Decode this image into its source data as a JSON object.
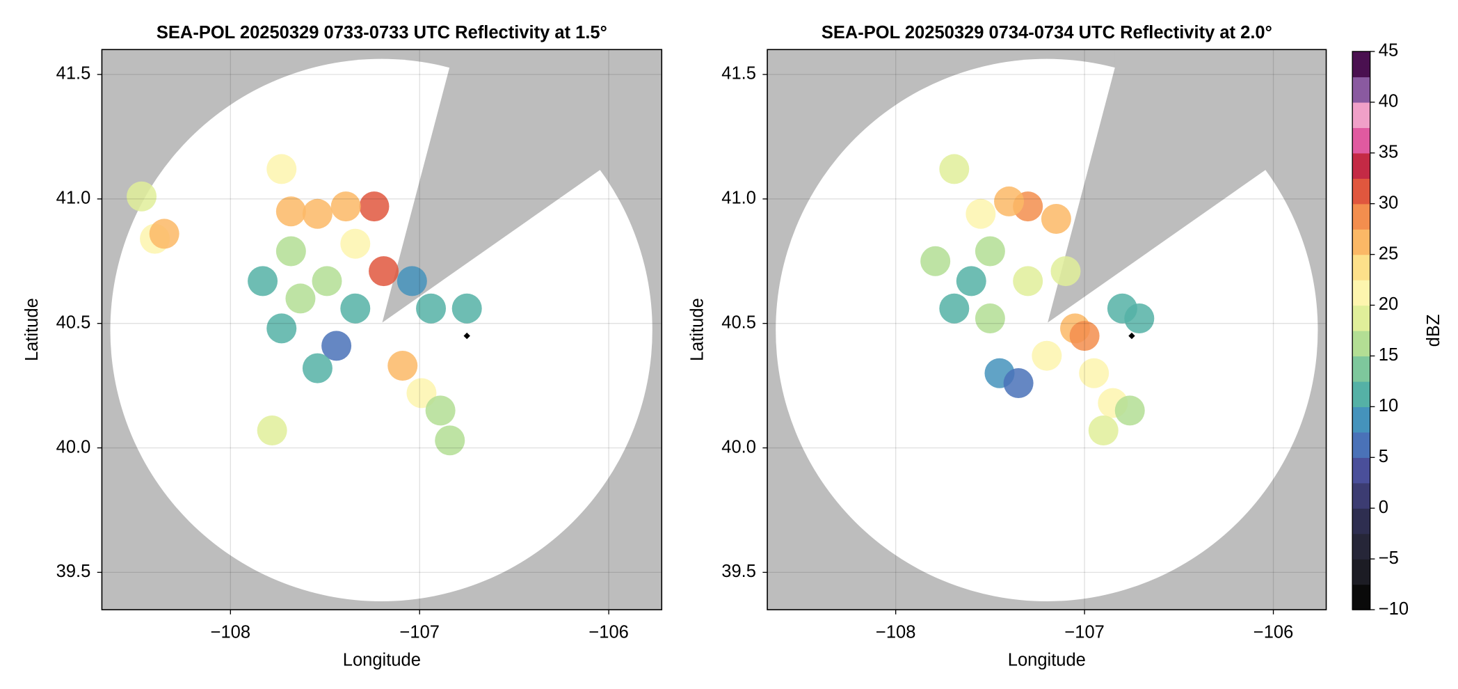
{
  "chart_data": [
    {
      "type": "radar",
      "title": "SEA-POL 20250329 0733-0733 UTC Reflectivity at 1.5°",
      "xlabel": "Longitude",
      "ylabel": "Latitude",
      "xlim": [
        -108.68,
        -105.72
      ],
      "ylim": [
        39.35,
        41.6
      ],
      "xticks": [
        {
          "value": -108,
          "label": "−108"
        },
        {
          "value": -107,
          "label": "−107"
        },
        {
          "value": -106,
          "label": "−106"
        }
      ],
      "yticks": [
        39.5,
        {
          "value": 40,
          "label": "40.0"
        },
        40.5,
        {
          "value": 41,
          "label": "41.0"
        },
        41.5
      ],
      "grid": true,
      "x": [
        -107.73,
        -107.68,
        -107.54,
        -107.24,
        -107.39,
        -107.68,
        -107.83,
        -107.63,
        -107.73,
        -107.49,
        -107.34,
        -107.19,
        -107.44,
        -107.54,
        -107.09,
        -106.99,
        -106.89,
        -106.84,
        -106.94,
        -106.75,
        -107.78,
        -108.4,
        -108.35,
        -108.47,
        -107.04,
        -107.34
      ],
      "y": [
        41.12,
        40.95,
        40.94,
        40.97,
        40.97,
        40.79,
        40.67,
        40.6,
        40.48,
        40.67,
        40.82,
        40.71,
        40.41,
        40.32,
        40.33,
        40.22,
        40.15,
        40.03,
        40.56,
        40.56,
        40.07,
        40.84,
        40.86,
        41.01,
        40.67,
        40.56
      ],
      "values": [
        20,
        25,
        25,
        30,
        25,
        15,
        10,
        15,
        10,
        15,
        20,
        30,
        5,
        10,
        25,
        20,
        15,
        15,
        10,
        10,
        18,
        20,
        25,
        18,
        8,
        12
      ],
      "markers": {
        "x": [
          -106.75
        ],
        "y": [
          40.45
        ]
      }
    },
    {
      "type": "radar",
      "title": "SEA-POL 20250329 0734-0734 UTC Reflectivity at 2.0°",
      "xlabel": "Longitude",
      "ylabel": "Latitude",
      "xlim": [
        -108.68,
        -105.72
      ],
      "ylim": [
        39.35,
        41.6
      ],
      "xticks": [
        {
          "value": -108,
          "label": "−108"
        },
        {
          "value": -107,
          "label": "−107"
        },
        {
          "value": -106,
          "label": "−106"
        }
      ],
      "yticks": [
        39.5,
        {
          "value": 40,
          "label": "40.0"
        },
        40.5,
        {
          "value": 41,
          "label": "41.0"
        },
        41.5
      ],
      "grid": true,
      "x": [
        -107.69,
        -107.55,
        -107.3,
        -107.4,
        -107.15,
        -107.5,
        -107.6,
        -107.69,
        -107.5,
        -107.3,
        -107.1,
        -107.05,
        -107.2,
        -106.95,
        -106.85,
        -107.0,
        -107.45,
        -106.8,
        -106.71,
        -106.76,
        -107.35,
        -107.79,
        -106.9
      ],
      "y": [
        41.12,
        40.94,
        40.97,
        40.99,
        40.92,
        40.79,
        40.67,
        40.56,
        40.52,
        40.67,
        40.71,
        40.48,
        40.37,
        40.3,
        40.18,
        40.45,
        40.3,
        40.56,
        40.52,
        40.15,
        40.26,
        40.75,
        40.07
      ],
      "values": [
        18,
        20,
        28,
        25,
        25,
        15,
        12,
        10,
        15,
        18,
        18,
        25,
        20,
        22,
        20,
        28,
        8,
        10,
        12,
        15,
        5,
        15,
        18
      ],
      "markers": {
        "x": [
          -106.75
        ],
        "y": [
          40.45
        ]
      }
    },
    {
      "type": "colorbar",
      "label": "dBZ",
      "lim": [
        -10,
        45
      ],
      "ticks": [
        {
          "value": -10,
          "label": "−10"
        },
        {
          "value": -5,
          "label": "−5"
        },
        0,
        5,
        10,
        15,
        20,
        25,
        30,
        35,
        40,
        45
      ],
      "colors": [
        "#0a0a0a",
        "#1c1c24",
        "#262638",
        "#2e2e50",
        "#3c3c72",
        "#4a4f9a",
        "#4a72b8",
        "#4593bc",
        "#55b1a6",
        "#7ec79c",
        "#b3de94",
        "#e0ef9a",
        "#fdf5ae",
        "#fde08a",
        "#fbb866",
        "#f38e4e",
        "#e0573e",
        "#c42a45",
        "#e05aa0",
        "#f0a0c8",
        "#8a5aa0",
        "#4a1050"
      ]
    }
  ]
}
